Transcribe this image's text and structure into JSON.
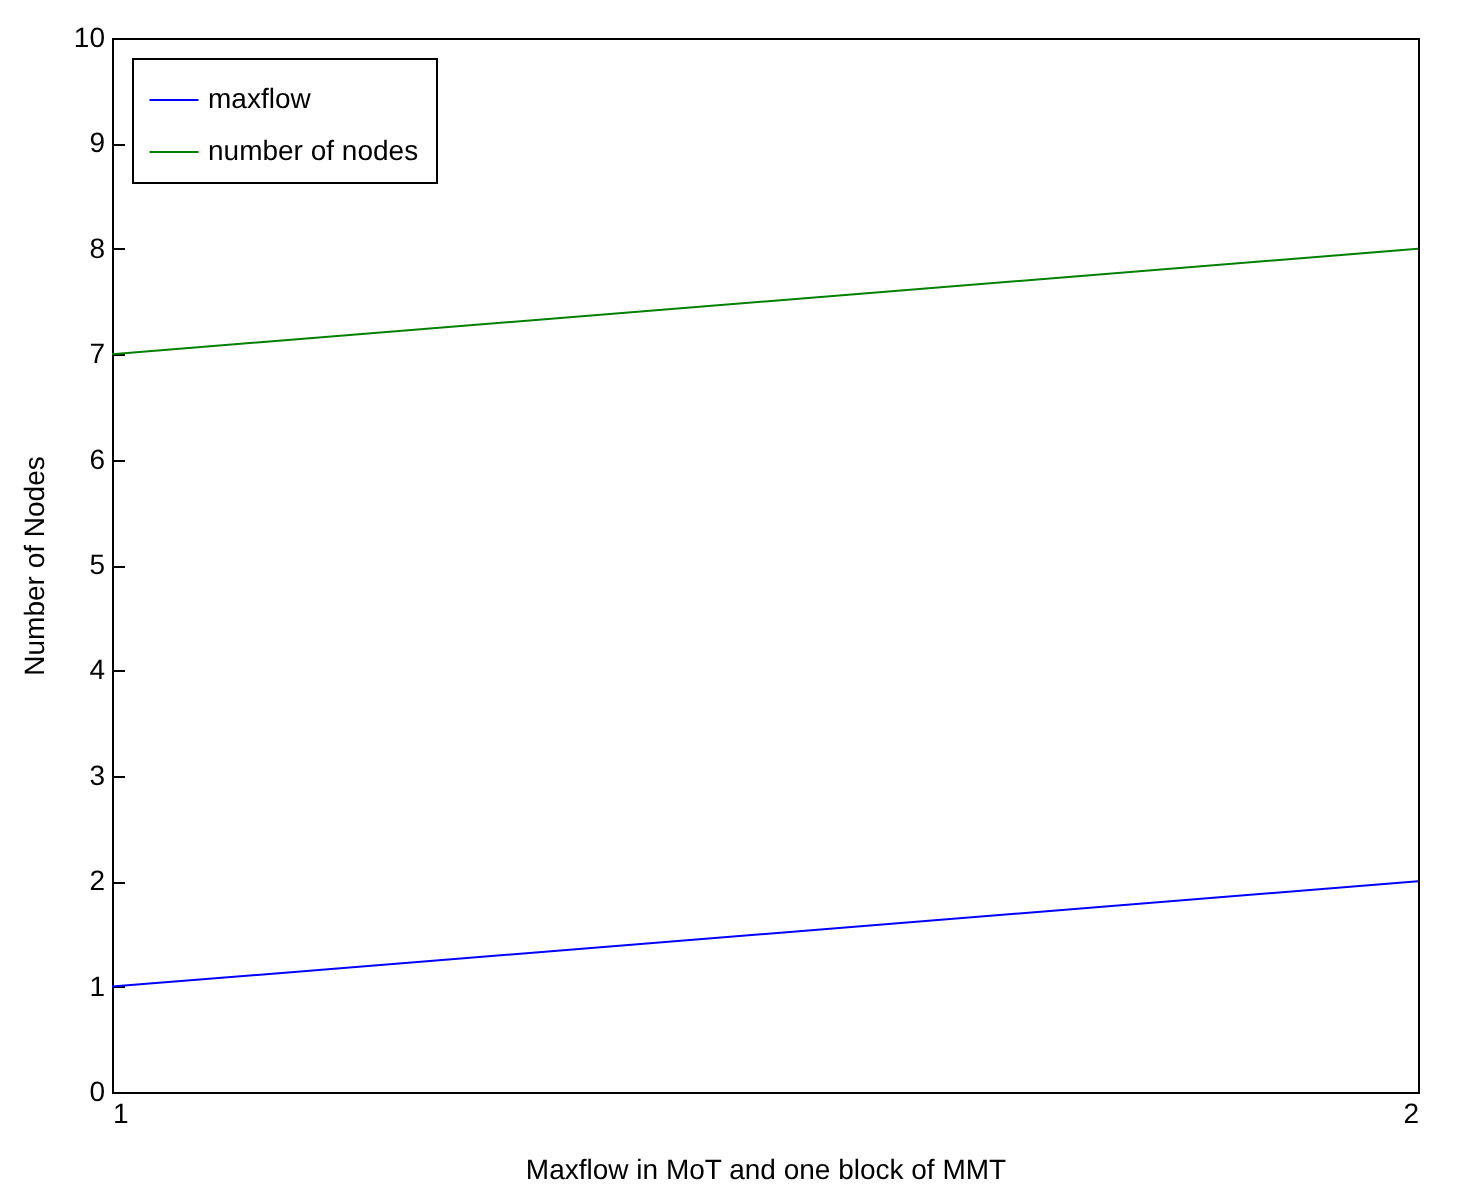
{
  "chart_data": {
    "type": "line",
    "xlabel": "Maxflow in MoT and one block of MMT",
    "ylabel": "Number of Nodes",
    "x": [
      1,
      2
    ],
    "series": [
      {
        "name": "maxflow",
        "color": "#0000ff",
        "values": [
          1,
          2
        ]
      },
      {
        "name": "number of nodes",
        "color": "#008000",
        "values": [
          7,
          8
        ]
      }
    ],
    "xlim": [
      1,
      2
    ],
    "xticks": [
      1,
      2
    ],
    "ylim": [
      0,
      10
    ],
    "yticks": [
      0,
      1,
      2,
      3,
      4,
      5,
      6,
      7,
      8,
      9,
      10
    ],
    "grid": false,
    "legend": "top left",
    "marker": "none",
    "line_style": "solid"
  }
}
